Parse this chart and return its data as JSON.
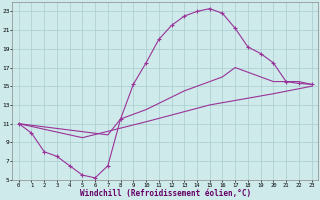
{
  "xlabel": "Windchill (Refroidissement éolien,°C)",
  "bg_color": "#ceeaea",
  "grid_color": "#aacccc",
  "line_color": "#993399",
  "xlim": [
    -0.5,
    23.5
  ],
  "ylim": [
    5,
    24
  ],
  "xtick_vals": [
    0,
    1,
    2,
    3,
    4,
    5,
    6,
    7,
    8,
    9,
    10,
    11,
    12,
    13,
    14,
    15,
    16,
    17,
    18,
    19,
    20,
    21,
    22,
    23
  ],
  "ytick_vals": [
    5,
    7,
    9,
    11,
    13,
    15,
    17,
    19,
    21,
    23
  ],
  "main_x": [
    0,
    1,
    2,
    3,
    4,
    5,
    6,
    7,
    8,
    9,
    10,
    11,
    12,
    13,
    14,
    15,
    16,
    17,
    18,
    19,
    20,
    21,
    22,
    23
  ],
  "main_y": [
    11,
    10,
    8,
    7.5,
    6.5,
    5.5,
    5.2,
    6.5,
    11.5,
    15.2,
    17.5,
    20,
    21.5,
    22.5,
    23.0,
    23.3,
    22.8,
    21.2,
    19.2,
    18.5,
    17.5,
    15.5,
    15.3,
    15.2
  ],
  "line1_x": [
    0,
    7,
    8,
    10,
    13,
    16,
    17,
    20,
    21,
    22,
    23
  ],
  "line1_y": [
    11,
    9.8,
    11.5,
    12.5,
    14.5,
    16,
    17.0,
    15.5,
    15.5,
    15.5,
    15.2
  ],
  "line2_x": [
    0,
    5,
    10,
    15,
    20,
    23
  ],
  "line2_y": [
    11,
    9.5,
    11.2,
    13.0,
    14.2,
    15.0
  ]
}
